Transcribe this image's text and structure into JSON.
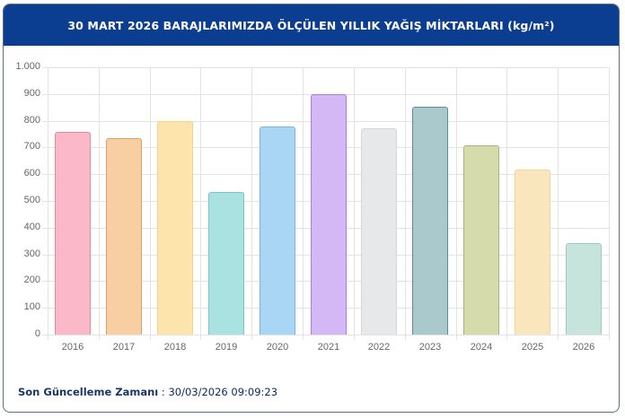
{
  "header": {
    "title": "30 MART 2026 BARAJLARIMIZDA ÖLÇÜLEN YILLIK YAĞIŞ MİKTARLARI (kg/m²)"
  },
  "footer": {
    "label": "Son Güncelleme Zamanı",
    "separator": " : ",
    "value": "30/03/2026 09:09:23"
  },
  "chart_data": {
    "type": "bar",
    "title": "30 MART 2026 BARAJLARIMIZDA ÖLÇÜLEN YILLIK YAĞIŞ MİKTARLARI (kg/m²)",
    "xlabel": "",
    "ylabel": "",
    "categories": [
      "2016",
      "2017",
      "2018",
      "2019",
      "2020",
      "2021",
      "2022",
      "2023",
      "2024",
      "2025",
      "2026"
    ],
    "values": [
      758,
      734,
      800,
      533,
      779,
      899,
      773,
      851,
      707,
      618,
      343
    ],
    "ylim": [
      0,
      1000
    ],
    "yticks": [
      "0",
      "100",
      "200",
      "300",
      "400",
      "500",
      "600",
      "700",
      "800",
      "900",
      "1.000"
    ],
    "grid": true,
    "legend": "none",
    "colors": [
      {
        "fill": "#fbb8c9",
        "border": "#e28aa1"
      },
      {
        "fill": "#f7cfa3",
        "border": "#d9a06a"
      },
      {
        "fill": "#fde4ad",
        "border": "#f2d28c"
      },
      {
        "fill": "#a9e2e0",
        "border": "#7cc3c1"
      },
      {
        "fill": "#a9d6f4",
        "border": "#7ab6de"
      },
      {
        "fill": "#d3b8f5",
        "border": "#a77fdc"
      },
      {
        "fill": "#e7e8e9",
        "border": "#d4d6d8"
      },
      {
        "fill": "#a9c9cd",
        "border": "#5f8b92"
      },
      {
        "fill": "#d5dbab",
        "border": "#a9b378"
      },
      {
        "fill": "#f9e6bc",
        "border": "#eed59e"
      },
      {
        "fill": "#c6e4dc",
        "border": "#9fcbbf"
      }
    ]
  }
}
